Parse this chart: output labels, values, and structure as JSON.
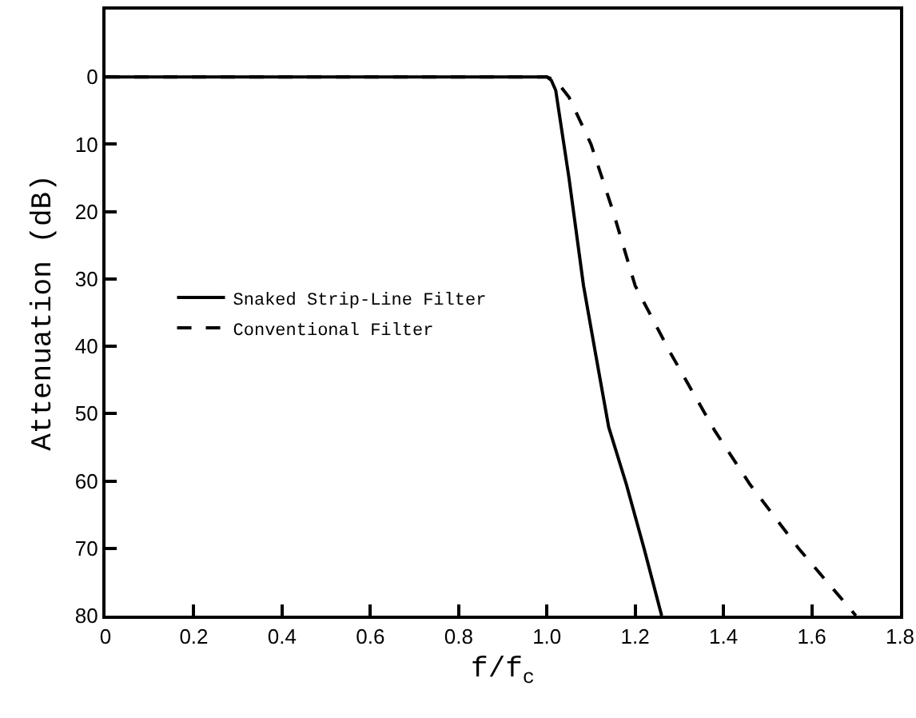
{
  "chart_data": {
    "type": "line",
    "xlabel": "f/f$_{c}$",
    "ylabel": "Attenuation (dB)",
    "xlim": [
      0,
      1.8
    ],
    "ylim": [
      80,
      -10
    ],
    "xticks": [
      0,
      0.2,
      0.4,
      0.6,
      0.8,
      {
        "value": 1,
        "label": "1.0"
      },
      1.2,
      1.4,
      1.6,
      1.8
    ],
    "yticks": [
      0,
      10,
      20,
      30,
      40,
      50,
      60,
      70,
      80
    ],
    "grid": false,
    "legend": "left",
    "marker": "none",
    "series": [
      {
        "name": "Snaked Strip-Line Filter",
        "color": "#000000",
        "line_style": "solid",
        "x": [
          0,
          0.98,
          1.0,
          1.01,
          1.02,
          1.05,
          1.083,
          1.11,
          1.14,
          1.18,
          1.22,
          1.26
        ],
        "values": [
          0,
          0,
          0,
          0.5,
          2,
          15,
          31,
          41,
          52,
          60.5,
          70,
          80
        ]
      },
      {
        "name": "Conventional Filter",
        "color": "#000000",
        "line_style": "dashed",
        "x": [
          0,
          1.0,
          1.02,
          1.05,
          1.1,
          1.15,
          1.2,
          1.28,
          1.38,
          1.46,
          1.57,
          1.7
        ],
        "values": [
          0,
          0,
          0.5,
          3,
          10,
          20,
          31,
          41,
          52.5,
          60.5,
          70,
          80
        ]
      }
    ]
  }
}
